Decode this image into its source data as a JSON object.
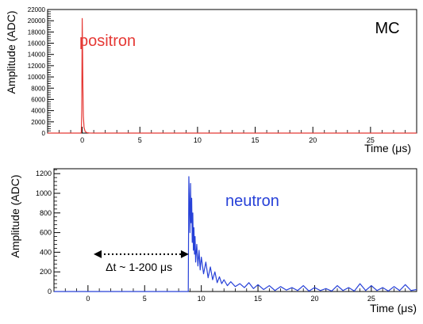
{
  "overlay_label": "MC",
  "chart_data": [
    {
      "type": "line",
      "xlabel": "Time (μs)",
      "ylabel": "Amplitude (ADC)",
      "xlim": [
        -3,
        29
      ],
      "ylim": [
        0,
        22000
      ],
      "x_ticks": [
        0,
        5,
        10,
        15,
        20,
        25
      ],
      "y_ticks": [
        0,
        2000,
        4000,
        6000,
        8000,
        10000,
        12000,
        14000,
        16000,
        18000,
        20000,
        22000
      ],
      "annotations": [
        {
          "text": "positron",
          "color": "#e53935",
          "x": 2.2,
          "y": 15500
        }
      ],
      "series": [
        {
          "color": "#e53935",
          "x": [
            -3,
            -0.15,
            -0.08,
            -0.04,
            0.0,
            0.03,
            0.06,
            0.1,
            0.16,
            0.25,
            0.4,
            0.6,
            1.0,
            29
          ],
          "y": [
            0,
            0,
            50,
            4000,
            20400,
            15000,
            8000,
            3000,
            1000,
            300,
            80,
            20,
            0,
            0
          ]
        }
      ]
    },
    {
      "type": "line",
      "xlabel": "Time (μs)",
      "ylabel": "Amplitude (ADC)",
      "xlim": [
        -3,
        29
      ],
      "ylim": [
        0,
        1250
      ],
      "x_ticks": [
        0,
        5,
        10,
        15,
        20,
        25
      ],
      "y_ticks": [
        0,
        200,
        400,
        600,
        800,
        1000,
        1200
      ],
      "annotations": [
        {
          "text": "neutron",
          "color": "#2741d8",
          "x": 14.5,
          "y": 870
        },
        {
          "text": "Δt ~ 1-200 μs",
          "color": "#000000",
          "x": 4.5,
          "y": 210
        }
      ],
      "arrow": {
        "x_from": 0.5,
        "x_to": 8.9,
        "y": 380
      },
      "series": [
        {
          "color": "#2741d8",
          "x": [
            -3,
            8.85,
            8.9,
            9.0,
            9.05,
            9.1,
            9.15,
            9.2,
            9.25,
            9.3,
            9.35,
            9.4,
            9.45,
            9.5,
            9.6,
            9.7,
            9.8,
            9.9,
            10.0,
            10.2,
            10.4,
            10.6,
            10.8,
            11.0,
            11.2,
            11.4,
            11.6,
            11.8,
            12.0,
            12.3,
            12.6,
            13.0,
            13.4,
            13.8,
            14.2,
            14.6,
            15.0,
            15.5,
            16.0,
            16.5,
            17.0,
            17.5,
            18.0,
            18.5,
            19.0,
            19.5,
            20.0,
            20.5,
            21.0,
            21.5,
            22.0,
            22.5,
            23.0,
            23.5,
            24.0,
            24.5,
            25.0,
            25.5,
            26.0,
            26.5,
            27.0,
            27.5,
            28.0,
            28.5,
            29
          ],
          "y": [
            0,
            0,
            1170,
            600,
            1100,
            700,
            950,
            500,
            800,
            420,
            650,
            380,
            560,
            300,
            480,
            260,
            420,
            220,
            350,
            180,
            300,
            140,
            250,
            120,
            200,
            90,
            150,
            80,
            120,
            60,
            100,
            50,
            80,
            40,
            90,
            30,
            70,
            20,
            60,
            10,
            50,
            15,
            40,
            10,
            60,
            5,
            40,
            10,
            30,
            5,
            60,
            10,
            40,
            5,
            80,
            10,
            60,
            10,
            40,
            5,
            50,
            10,
            70,
            10,
            20
          ]
        }
      ]
    }
  ]
}
